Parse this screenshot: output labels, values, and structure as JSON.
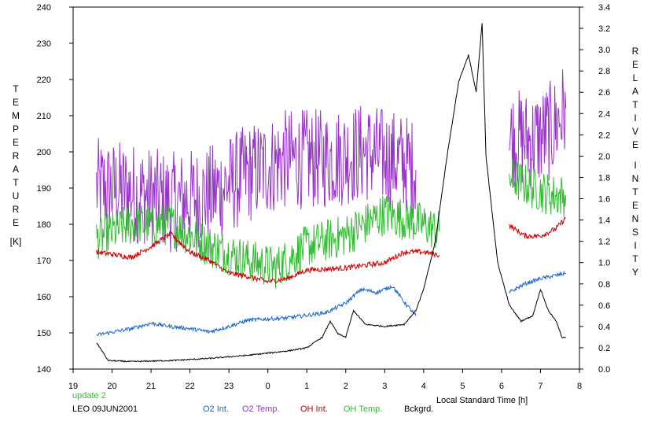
{
  "chart_data": {
    "type": "line",
    "x_axis": {
      "label": "Local Standard Time [h]",
      "range": [
        19,
        8
      ],
      "ticks": [
        "19",
        "20",
        "21",
        "22",
        "23",
        "0",
        "1",
        "2",
        "3",
        "4",
        "5",
        "6",
        "7",
        "8"
      ]
    },
    "y_left": {
      "label_letters": [
        "T",
        "E",
        "M",
        "P",
        "E",
        "R",
        "A",
        "T",
        "U",
        "R",
        "E"
      ],
      "unit": "[K]",
      "range": [
        140,
        240
      ],
      "ticks": [
        "140",
        "150",
        "160",
        "170",
        "180",
        "190",
        "200",
        "210",
        "220",
        "230",
        "240"
      ]
    },
    "y_right": {
      "label_letters_1": [
        "R",
        "E",
        "L",
        "A",
        "T",
        "I",
        "V",
        "E"
      ],
      "label_letters_2": [
        "I",
        "N",
        "T",
        "E",
        "N",
        "S",
        "I",
        "T",
        "Y"
      ],
      "range": [
        0.0,
        3.4
      ],
      "ticks": [
        "0.0",
        "0.2",
        "0.4",
        "0.6",
        "0.8",
        "1.0",
        "1.2",
        "1.4",
        "1.6",
        "1.8",
        "2.0",
        "2.2",
        "2.4",
        "2.6",
        "2.8",
        "3.0",
        "3.2",
        "3.4"
      ]
    },
    "series": [
      {
        "name": "O2 Temp.",
        "axis": "left",
        "color": "#9933cc",
        "noise": 14,
        "points": [
          [
            19.6,
            190
          ],
          [
            20.5,
            189
          ],
          [
            21.5,
            186
          ],
          [
            22.5,
            188
          ],
          [
            23.5,
            194
          ],
          [
            0.5,
            198
          ],
          [
            1.5,
            198
          ],
          [
            2.5,
            200
          ],
          [
            3.5,
            197
          ],
          [
            3.8,
            195
          ],
          [
            6.2,
            204
          ],
          [
            6.8,
            203
          ],
          [
            7.3,
            206
          ],
          [
            7.65,
            212
          ]
        ]
      },
      {
        "name": "OH Temp.",
        "axis": "left",
        "color": "#33bb33",
        "noise": 6,
        "points": [
          [
            19.6,
            176
          ],
          [
            20.5,
            180
          ],
          [
            21.5,
            180
          ],
          [
            22.5,
            174
          ],
          [
            23.5,
            170
          ],
          [
            0.2,
            168
          ],
          [
            1,
            174
          ],
          [
            2,
            177
          ],
          [
            3,
            183
          ],
          [
            4,
            180
          ],
          [
            4.4,
            178
          ],
          [
            6.2,
            193
          ],
          [
            6.8,
            190
          ],
          [
            7.3,
            188
          ],
          [
            7.65,
            188
          ]
        ]
      },
      {
        "name": "OH Int.",
        "axis": "right",
        "color": "#cc0000",
        "noise": 0.025,
        "points": [
          [
            19.6,
            1.1
          ],
          [
            20.5,
            1.05
          ],
          [
            21,
            1.15
          ],
          [
            21.5,
            1.27
          ],
          [
            22,
            1.1
          ],
          [
            22.5,
            1.02
          ],
          [
            23,
            0.9
          ],
          [
            23.5,
            0.87
          ],
          [
            0,
            0.82
          ],
          [
            0.5,
            0.85
          ],
          [
            1,
            0.93
          ],
          [
            2,
            0.95
          ],
          [
            3,
            1.0
          ],
          [
            3.5,
            1.1
          ],
          [
            4,
            1.1
          ],
          [
            4.4,
            1.07
          ],
          [
            6.2,
            1.35
          ],
          [
            6.6,
            1.25
          ],
          [
            7,
            1.25
          ],
          [
            7.4,
            1.32
          ],
          [
            7.65,
            1.42
          ]
        ]
      },
      {
        "name": "O2 Int.",
        "axis": "right",
        "color": "#1a66cc",
        "noise": 0.018,
        "points": [
          [
            19.6,
            0.32
          ],
          [
            20.5,
            0.38
          ],
          [
            21,
            0.43
          ],
          [
            21.5,
            0.4
          ],
          [
            22,
            0.38
          ],
          [
            22.5,
            0.35
          ],
          [
            23,
            0.4
          ],
          [
            23.5,
            0.46
          ],
          [
            0.5,
            0.48
          ],
          [
            1.5,
            0.53
          ],
          [
            2,
            0.62
          ],
          [
            2.4,
            0.75
          ],
          [
            2.8,
            0.72
          ],
          [
            3.2,
            0.78
          ],
          [
            3.5,
            0.63
          ],
          [
            3.8,
            0.5
          ],
          [
            6.2,
            0.72
          ],
          [
            6.6,
            0.8
          ],
          [
            7,
            0.85
          ],
          [
            7.4,
            0.88
          ],
          [
            7.65,
            0.9
          ]
        ]
      },
      {
        "name": "Bckgrd.",
        "axis": "right",
        "color": "#000000",
        "noise": 0.006,
        "points": [
          [
            19.6,
            0.25
          ],
          [
            19.9,
            0.08
          ],
          [
            20.5,
            0.07
          ],
          [
            21.5,
            0.08
          ],
          [
            22.5,
            0.1
          ],
          [
            23.5,
            0.13
          ],
          [
            0.5,
            0.17
          ],
          [
            1,
            0.2
          ],
          [
            1.4,
            0.3
          ],
          [
            1.6,
            0.45
          ],
          [
            1.8,
            0.33
          ],
          [
            2,
            0.3
          ],
          [
            2.2,
            0.55
          ],
          [
            2.5,
            0.42
          ],
          [
            3,
            0.4
          ],
          [
            3.5,
            0.42
          ],
          [
            3.8,
            0.55
          ],
          [
            4,
            0.75
          ],
          [
            4.3,
            1.2
          ],
          [
            4.6,
            2.0
          ],
          [
            4.9,
            2.7
          ],
          [
            5.15,
            2.95
          ],
          [
            5.35,
            2.6
          ],
          [
            5.5,
            3.25
          ],
          [
            5.6,
            2.0
          ],
          [
            5.9,
            1.0
          ],
          [
            6.2,
            0.6
          ],
          [
            6.5,
            0.45
          ],
          [
            6.8,
            0.5
          ],
          [
            7.0,
            0.75
          ],
          [
            7.2,
            0.55
          ],
          [
            7.4,
            0.45
          ],
          [
            7.55,
            0.3
          ],
          [
            7.65,
            0.3
          ]
        ]
      }
    ],
    "footer": {
      "update": "update 2",
      "site_date": "LEO 09JUN2001",
      "legend": [
        {
          "label": "O2 Int.",
          "color": "#1a66cc"
        },
        {
          "label": "O2 Temp.",
          "color": "#9933cc"
        },
        {
          "label": "OH Int.",
          "color": "#cc0000"
        },
        {
          "label": "OH Temp.",
          "color": "#33bb33"
        },
        {
          "label": "Bckgrd.",
          "color": "#000000"
        }
      ]
    }
  }
}
